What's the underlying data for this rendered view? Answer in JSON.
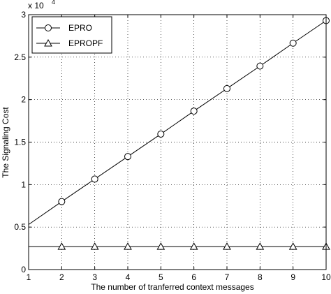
{
  "chart_data": {
    "type": "line",
    "title": "",
    "xlabel": "The number of tranferred context messages",
    "ylabel": "The Signaling Cost",
    "y_multiplier": {
      "base": "x 10",
      "exponent": "4"
    },
    "xlim": [
      1,
      10
    ],
    "ylim": [
      0,
      30000
    ],
    "x_ticks": [
      1,
      2,
      3,
      4,
      5,
      6,
      7,
      8,
      9,
      10
    ],
    "y_ticks": [
      0,
      5000,
      10000,
      15000,
      20000,
      25000,
      30000
    ],
    "y_tick_labels": [
      "0",
      "0.5",
      "1",
      "1.5",
      "2",
      "2.5",
      "3"
    ],
    "grid": true,
    "legend_position": "top-left",
    "series": [
      {
        "name": "EPRO",
        "marker": "circle",
        "color": "#000000",
        "x": [
          1,
          2,
          3,
          4,
          5,
          6,
          7,
          8,
          9,
          10
        ],
        "y": [
          5300,
          8000,
          10650,
          13300,
          15950,
          18650,
          21300,
          23950,
          26650,
          29300
        ],
        "marker_x": [
          2,
          3,
          4,
          5,
          6,
          7,
          8,
          9,
          10
        ]
      },
      {
        "name": "EPROPF",
        "marker": "triangle",
        "color": "#000000",
        "x": [
          1,
          2,
          3,
          4,
          5,
          6,
          7,
          8,
          9,
          10
        ],
        "y": [
          2700,
          2700,
          2700,
          2700,
          2700,
          2700,
          2700,
          2700,
          2700,
          2700
        ],
        "marker_x": [
          2,
          3,
          4,
          5,
          6,
          7,
          8,
          9,
          10
        ]
      }
    ]
  }
}
